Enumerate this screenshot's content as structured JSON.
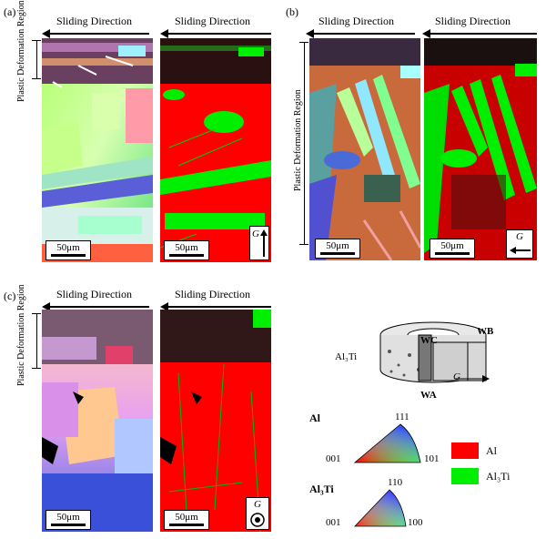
{
  "panels": {
    "a": {
      "label": "(a)",
      "slide_left": "Sliding Direction",
      "slide_right": "Sliding Direction",
      "pdr": "Plastic Deformation Region",
      "scale_left": "50μm",
      "scale_right": "50μm",
      "g": "G"
    },
    "b": {
      "label": "(b)",
      "slide_left": "Sliding Direction",
      "slide_right": "Sliding Direction",
      "pdr": "Plastic Deformation Region",
      "scale_left": "50μm",
      "scale_right": "50μm",
      "g": "G"
    },
    "c": {
      "label": "(c)",
      "slide_left": "Sliding Direction",
      "slide_right": "Sliding Direction",
      "pdr": "Plastic Deformation Region",
      "scale_left": "50μm",
      "scale_right": "50μm",
      "g": "G"
    }
  },
  "schematic": {
    "wb": "WB",
    "wc": "WC",
    "wa": "WA",
    "al3ti": "Al₃Ti",
    "g": "G"
  },
  "ipf": {
    "al": {
      "title": "Al",
      "top": "111",
      "left": "001",
      "right": "101"
    },
    "al3ti": {
      "title": "Al₃Ti",
      "top": "110",
      "left": "001",
      "right": "100"
    }
  },
  "legend": [
    {
      "label": "Al",
      "color": "#ff0000"
    },
    {
      "label": "Al₃Ti",
      "color": "#00ee00"
    }
  ]
}
